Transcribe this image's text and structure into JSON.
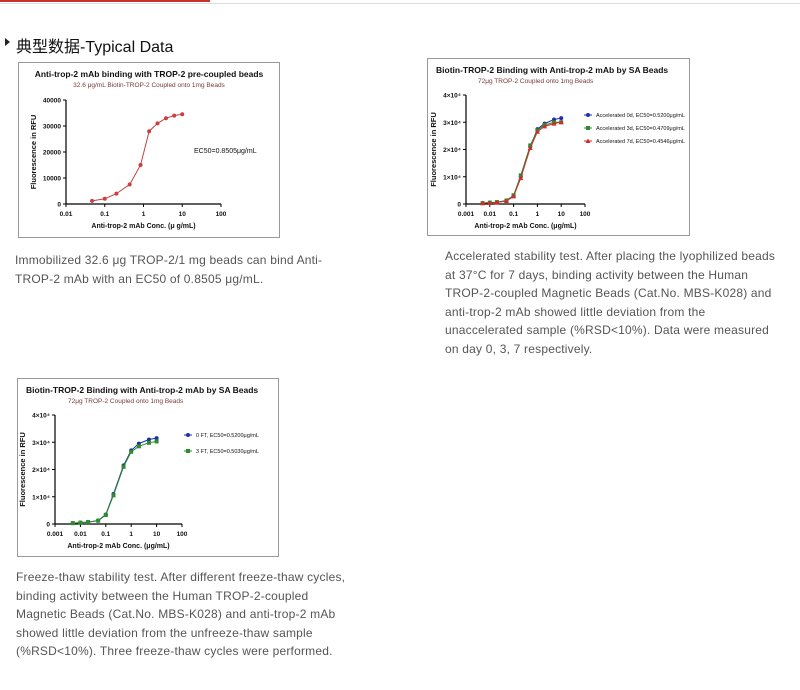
{
  "heading": "典型数据-Typical Data",
  "figures": [
    {
      "chart": {
        "type": "scatter",
        "title": "Anti-trop-2 mAb binding with TROP-2 pre-coupled beads",
        "subtitle": "32.6 μg/mL Biotin-TROP-2 Coupled onto 1mg Beads",
        "xlabel": "Anti-trop-2 mAb Conc. (μ g/mL)",
        "ylabel": "Fluorescence in RFU",
        "annotation": "EC50=0.8505μg/mL",
        "x": [
          0.047,
          0.1,
          0.2,
          0.44,
          0.84,
          1.4,
          2.3,
          3.8,
          6.2,
          10
        ],
        "series": [
          {
            "color": "#c8413e",
            "marker": "circle",
            "values": [
              1200,
              2000,
              4000,
              7500,
              15000,
              28000,
              31000,
              33000,
              34000,
              34500
            ]
          }
        ],
        "xlim": [
          0.01,
          100
        ],
        "xticks": [
          0.01,
          0.1,
          1,
          10,
          100
        ],
        "log_x": true,
        "ylim": [
          0,
          40000
        ],
        "yticks": [
          0,
          10000,
          20000,
          30000,
          40000
        ]
      },
      "caption": "Immobilized 32.6 μg TROP-2/1 mg beads can bind Anti-TROP-2 mAb with an EC50 of 0.8505 μg/mL."
    },
    {
      "chart": {
        "type": "scatter",
        "title": "Biotin-TROP-2 Binding with Anti-trop-2 mAb by SA Beads",
        "subtitle": "72μg TROP-2 Coupled onto 1mg Beads",
        "xlabel": "Anti-trop-2 mAb Conc. (μg/mL)",
        "ylabel": "Fluorescence in RFU",
        "x": [
          0.005,
          0.01,
          0.02,
          0.05,
          0.1,
          0.2,
          0.5,
          1,
          2,
          5,
          10
        ],
        "series": [
          {
            "name": "Accelerated 0d,  EC50=0.5200μg/mL",
            "color": "#1f2fa8",
            "marker": "circle",
            "values": [
              300,
              500,
              600,
              1200,
              3000,
              10000,
              21000,
              27500,
              29500,
              31000,
              31500
            ]
          },
          {
            "name": "Accelerated 3d,  EC50=0.4709μg/mL",
            "color": "#2e8b2e",
            "marker": "square",
            "values": [
              300,
              500,
              700,
              1300,
              3200,
              10500,
              21500,
              27000,
              29000,
              30000,
              30000
            ]
          },
          {
            "name": "Accelerated 7d,  EC50=0.4546μg/mL",
            "color": "#d22b2b",
            "marker": "triangle",
            "values": [
              300,
              400,
              600,
              1100,
              2800,
              9500,
              20500,
              26500,
              28500,
              29500,
              30000
            ]
          }
        ],
        "legend": "right",
        "xlim": [
          0.001,
          100
        ],
        "xticks": [
          0.001,
          0.01,
          0.1,
          1,
          10,
          100
        ],
        "log_x": true,
        "ylim": [
          0,
          40000
        ],
        "yticks": [
          0,
          {
            "value": 10000,
            "label": "1×10⁴"
          },
          {
            "value": 20000,
            "label": "2×10⁴"
          },
          {
            "value": 30000,
            "label": "3×10⁴"
          },
          {
            "value": 40000,
            "label": "4×10⁴"
          }
        ]
      },
      "caption": "Accelerated stability test. After placing the lyophilized beads at 37°C for 7 days, binding activity between the Human TROP-2-coupled Magnetic Beads (Cat.No. MBS-K028) and anti-trop-2 mAb showed little deviation from the unaccelerated sample (%RSD<10%). Data were measured on day 0, 3, 7 respectively."
    },
    {
      "chart": {
        "type": "scatter",
        "title": "Biotin-TROP-2 Binding with Anti-trop-2 mAb by SA Beads",
        "subtitle": "72μg TROP-2 Coupled onto 1mg Beads",
        "xlabel": "Anti-trop-2 mAb Conc. (μg/mL)",
        "ylabel": "Fluorescence in RFU",
        "x": [
          0.005,
          0.01,
          0.02,
          0.05,
          0.1,
          0.2,
          0.5,
          1,
          2,
          5,
          10
        ],
        "series": [
          {
            "name": "0 FT,  EC50=0.5200μg/mL",
            "color": "#1f2fa8",
            "marker": "circle",
            "values": [
              300,
              500,
              700,
              1300,
              3500,
              11000,
              21500,
              27000,
              29500,
              31000,
              31500
            ]
          },
          {
            "name": "3 FT,  EC50=0.5030μg/mL",
            "color": "#2e8b2e",
            "marker": "square",
            "values": [
              300,
              500,
              700,
              1200,
              3300,
              10500,
              21000,
              26500,
              28500,
              29800,
              30300
            ]
          }
        ],
        "legend": "right",
        "xlim": [
          0.001,
          100
        ],
        "xticks": [
          0.001,
          0.01,
          0.1,
          1,
          10,
          100
        ],
        "log_x": true,
        "ylim": [
          0,
          40000
        ],
        "yticks": [
          0,
          {
            "value": 10000,
            "label": "1×10⁴"
          },
          {
            "value": 20000,
            "label": "2×10⁴"
          },
          {
            "value": 30000,
            "label": "3×10⁴"
          },
          {
            "value": 40000,
            "label": "4×10⁴"
          }
        ]
      },
      "caption": "Freeze-thaw stability test. After different freeze-thaw cycles, binding activity between the Human TROP-2-coupled Magnetic Beads (Cat.No. MBS-K028) and anti-trop-2 mAb showed little deviation from the unfreeze-thaw sample (%RSD<10%). Three freeze-thaw cycles were performed."
    }
  ]
}
